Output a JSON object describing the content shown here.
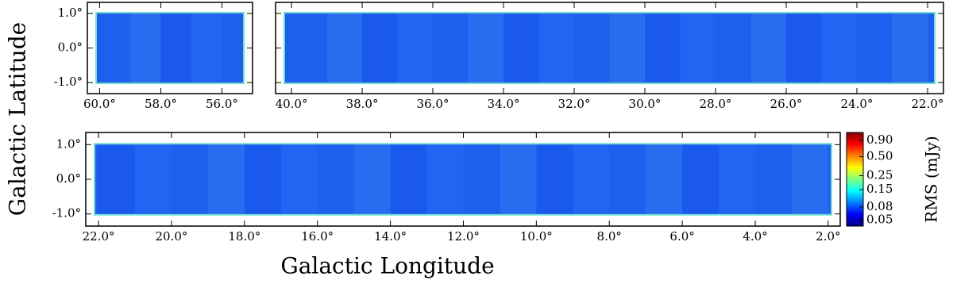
{
  "figure": {
    "xlabel": "Galactic Longitude",
    "ylabel": "Galactic Latitude"
  },
  "chart_data": [
    {
      "type": "map",
      "map_color": "#1e5ef0",
      "xlim": [
        60.4,
        55.0
      ],
      "ylim": [
        -1.32,
        1.32
      ],
      "xticks": [
        {
          "value": 60,
          "label": "60.0°"
        },
        {
          "value": 58,
          "label": "58.0°"
        },
        {
          "value": 56,
          "label": "56.0°"
        }
      ],
      "yticks": [
        {
          "value": 1,
          "label": "1.0°"
        },
        {
          "value": 0,
          "label": "0.0°"
        },
        {
          "value": -1,
          "label": "-1.0°"
        }
      ],
      "show_yticklabels": true
    },
    {
      "type": "map",
      "map_color": "#1e5ef0",
      "xlim": [
        40.45,
        21.55
      ],
      "ylim": [
        -1.32,
        1.32
      ],
      "xticks": [
        {
          "value": 40,
          "label": "40.0°"
        },
        {
          "value": 38,
          "label": "38.0°"
        },
        {
          "value": 36,
          "label": "36.0°"
        },
        {
          "value": 34,
          "label": "34.0°"
        },
        {
          "value": 32,
          "label": "32.0°"
        },
        {
          "value": 30,
          "label": "30.0°"
        },
        {
          "value": 28,
          "label": "28.0°"
        },
        {
          "value": 26,
          "label": "26.0°"
        },
        {
          "value": 24,
          "label": "24.0°"
        },
        {
          "value": 22,
          "label": "22.0°"
        }
      ],
      "yticks": [
        {
          "value": 1,
          "label": "1.0°"
        },
        {
          "value": 0,
          "label": "0.0°"
        },
        {
          "value": -1,
          "label": "-1.0°"
        }
      ],
      "show_yticklabels": false
    },
    {
      "type": "map",
      "map_color": "#1e5ef0",
      "xlim": [
        22.35,
        1.67
      ],
      "ylim": [
        -1.35,
        1.35
      ],
      "xticks": [
        {
          "value": 22,
          "label": "22.0°"
        },
        {
          "value": 20,
          "label": "20.0°"
        },
        {
          "value": 18,
          "label": "18.0°"
        },
        {
          "value": 16,
          "label": "16.0°"
        },
        {
          "value": 14,
          "label": "14.0°"
        },
        {
          "value": 12,
          "label": "12.0°"
        },
        {
          "value": 10,
          "label": "10.0°"
        },
        {
          "value": 8,
          "label": "8.0°"
        },
        {
          "value": 6,
          "label": "6.0°"
        },
        {
          "value": 4,
          "label": "4.0°"
        },
        {
          "value": 2,
          "label": "2.0°"
        }
      ],
      "yticks": [
        {
          "value": 1,
          "label": "1.0°"
        },
        {
          "value": 0,
          "label": "0.0°"
        },
        {
          "value": -1,
          "label": "-1.0°"
        }
      ],
      "show_yticklabels": true
    },
    {
      "type": "colorbar",
      "label": "RMS (mJy)",
      "clim": [
        0.04,
        1.2
      ],
      "log": true,
      "colors": [
        "#00007f",
        "#0000ff",
        "#007fff",
        "#00ffff",
        "#7fff7f",
        "#ffff00",
        "#ff7f00",
        "#ff0000",
        "#7f0000"
      ],
      "ticks": [
        {
          "value": 0.9,
          "label": "0.90"
        },
        {
          "value": 0.5,
          "label": "0.50"
        },
        0.25,
        0.15,
        0.08,
        0.05
      ]
    }
  ]
}
